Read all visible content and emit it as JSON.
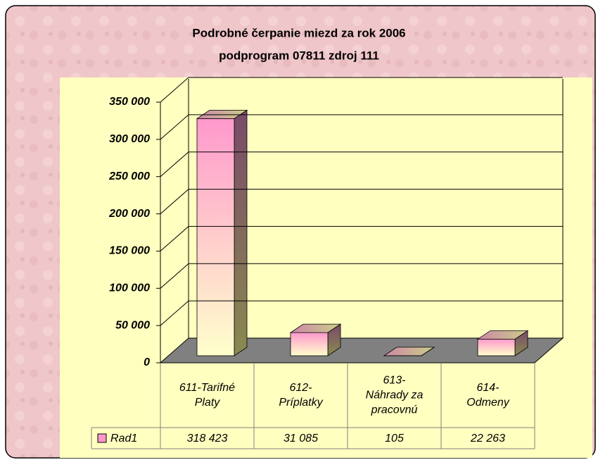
{
  "chart_data": {
    "type": "bar3d",
    "title": "Podrobné čerpanie miezd  za rok 2006",
    "subtitle": "podprogram 07811 zdroj 111",
    "categories": [
      "611-Tarifné Platy",
      "612-Príplatky",
      "613-Náhrady za pracovnú",
      "614-Odmeny"
    ],
    "series": [
      {
        "name": "Rad1",
        "color": "#ff99cc",
        "values": [
          318423,
          31085,
          105,
          22263
        ],
        "value_labels": [
          "318 423",
          "31 085",
          "105",
          "22 263"
        ]
      }
    ],
    "ylim": [
      0,
      350000
    ],
    "yticks": [
      0,
      {
        "value": 50000,
        "label": "50 000"
      },
      {
        "value": 100000,
        "label": "100 000"
      },
      {
        "value": 150000,
        "label": "150 000"
      },
      {
        "value": 200000,
        "label": "200 000"
      },
      {
        "value": 250000,
        "label": "250 000"
      },
      {
        "value": 300000,
        "label": "300 000"
      },
      {
        "value": 350000,
        "label": "350 000"
      }
    ],
    "grid": true
  }
}
